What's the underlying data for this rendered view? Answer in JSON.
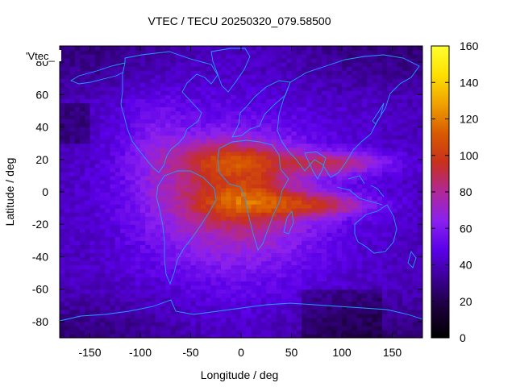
{
  "chart_data": {
    "type": "heatmap",
    "title": "VTEC / TECU 20250320_079.58500",
    "xlabel": "Longitude / deg",
    "ylabel": "Latitude / deg",
    "key_label": "'Vtec_",
    "xlim": [
      -180,
      180
    ],
    "ylim": [
      -90,
      90
    ],
    "x_ticks": [
      -150,
      -100,
      -50,
      0,
      50,
      100,
      150
    ],
    "y_ticks": [
      -80,
      -60,
      -40,
      -20,
      0,
      20,
      40,
      60,
      80
    ],
    "colorbar": {
      "range": [
        0,
        160
      ],
      "ticks": [
        0,
        20,
        40,
        60,
        80,
        100,
        120,
        140,
        160
      ],
      "stops": [
        "#000000",
        "#1a0038",
        "#3a0090",
        "#5a00e8",
        "#8a20f0",
        "#b02898",
        "#c8301c",
        "#d85a00",
        "#f0a000",
        "#ffe000",
        "#ffff30"
      ]
    },
    "grid": false,
    "legend": "top-left",
    "features": {
      "equatorial_anomaly_crests": [
        {
          "lon": -10,
          "lat": 20,
          "value": 120
        },
        {
          "lon": 0,
          "lat": -5,
          "value": 115
        }
      ],
      "background_high_latitude": 40,
      "polar_minimum": 15
    },
    "coastline_color": "#1f9fff"
  }
}
